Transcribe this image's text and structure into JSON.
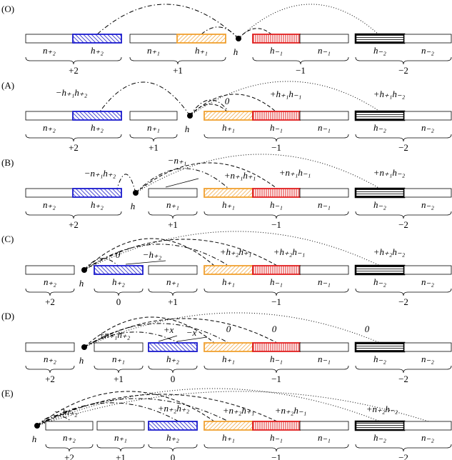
{
  "panels": [
    {
      "label": "(O)",
      "cells": [
        "n₊₂",
        "h₊₂",
        "n₊₁",
        "h₊₁",
        "h₋₁",
        "n₋₁",
        "h₋₂",
        "n₋₂"
      ],
      "dot": "h",
      "groups": [
        "+2",
        "+1",
        "−1",
        "−2"
      ],
      "arc_labels": []
    },
    {
      "label": "(A)",
      "cells": [
        "n₊₂",
        "h₊₂",
        "n₊₁",
        "h₊₁",
        "h₋₁",
        "n₋₁",
        "h₋₂",
        "n₋₂"
      ],
      "dot": "h",
      "groups": [
        "+2",
        "+1",
        "−1",
        "−2"
      ],
      "arc_labels": [
        "−h₊₁h₊₂",
        "0",
        "+h₊₁h₋₁",
        "+h₊₁h₋₂"
      ]
    },
    {
      "label": "(B)",
      "cells": [
        "n₊₂",
        "h₊₂",
        "n₊₁",
        "h₊₁",
        "h₋₁",
        "n₋₁",
        "h₋₂",
        "n₋₂"
      ],
      "dot": "h",
      "groups": [
        "+2",
        "+1",
        "−1",
        "−2"
      ],
      "arc_labels": [
        "−n₊₁h₊₂",
        "−n₊₁",
        "+n₊₁h₊₁",
        "+n₊₁h₋₁",
        "+n₊₁h₋₂"
      ]
    },
    {
      "label": "(C)",
      "cells": [
        "n₊₂",
        "h₊₂",
        "n₊₁",
        "h₊₁",
        "h₋₁",
        "n₋₁",
        "h₋₂",
        "n₋₂"
      ],
      "dot": "h",
      "groups": [
        "+2",
        "0",
        "+1",
        "−1",
        "−2"
      ],
      "arc_labels": [
        "0",
        "−h₊₂",
        "+h₊₂h₊₁",
        "+h₊₂h₋₁",
        "+h₊₂h₋₂"
      ]
    },
    {
      "label": "(D)",
      "cells": [
        "n₊₂",
        "n₊₁",
        "h₊₂",
        "h₊₁",
        "h₋₁",
        "n₋₁",
        "h₋₂",
        "n₋₂"
      ],
      "dot": "h",
      "groups": [
        "+2",
        "+1",
        "0",
        "−1",
        "−2"
      ],
      "arc_labels": [
        "+n₊₁h₊₂",
        "+x",
        "−x",
        "0",
        "0",
        "0"
      ]
    },
    {
      "label": "(E)",
      "cells": [
        "n₊₂",
        "n₊₁",
        "h₊₂",
        "h₊₁",
        "h₋₁",
        "n₋₁",
        "h₋₂",
        "n₋₂"
      ],
      "dot": "h",
      "groups": [
        "+2",
        "+1",
        "0",
        "−1",
        "−2"
      ],
      "arc_labels": [
        "−2n₊₂",
        "+n₊₂h₊₂",
        "+n₊₂h₊₁",
        "+n₊₂h₋₁",
        "+n₊₂h₋₂"
      ]
    }
  ]
}
